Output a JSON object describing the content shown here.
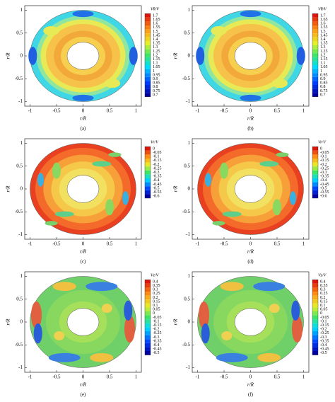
{
  "chart_data": [
    {
      "type": "contour",
      "caption": "(a)",
      "xlabel": "r/R",
      "ylabel": "r/R",
      "xlim": [
        -1.1,
        1.1
      ],
      "ylim": [
        -1.1,
        1.1
      ],
      "xticks": [
        -1,
        -0.5,
        0,
        0.5,
        1
      ],
      "yticks": [
        -1,
        -0.5,
        0,
        0.5,
        1
      ],
      "colorbar_title": "Vθ/V",
      "levels": [
        1.7,
        1.65,
        1.6,
        1.55,
        1.5,
        1.45,
        1.4,
        1.35,
        1.3,
        1.25,
        1.2,
        1.15,
        1.1,
        1.05,
        1,
        0.95,
        0.9,
        0.85,
        0.8,
        0.75,
        0.7
      ]
    },
    {
      "type": "contour",
      "caption": "(b)",
      "xlabel": "r/R",
      "ylabel": "r/R",
      "xlim": [
        -1.1,
        1.1
      ],
      "ylim": [
        -1.1,
        1.1
      ],
      "xticks": [
        -1,
        -0.5,
        0,
        0.5,
        1
      ],
      "yticks": [
        -1,
        -0.5,
        0,
        0.5,
        1
      ],
      "colorbar_title": "Vθ/V",
      "levels": [
        1.7,
        1.65,
        1.6,
        1.55,
        1.5,
        1.45,
        1.4,
        1.35,
        1.3,
        1.25,
        1.2,
        1.15,
        1.1,
        1.05,
        1,
        0.95,
        0.9,
        0.85,
        0.8,
        0.75,
        0.7
      ]
    },
    {
      "type": "contour",
      "caption": "(c)",
      "xlabel": "r/R",
      "ylabel": "r/R",
      "xlim": [
        -1.1,
        1.1
      ],
      "ylim": [
        -1.1,
        1.1
      ],
      "xticks": [
        -1,
        -0.5,
        0,
        0.5,
        1
      ],
      "yticks": [
        -1,
        -0.5,
        0,
        0.5,
        1
      ],
      "colorbar_title": "Vr/V",
      "levels": [
        0,
        -0.05,
        -0.1,
        -0.15,
        -0.2,
        -0.25,
        -0.3,
        -0.35,
        -0.4,
        -0.45,
        -0.5,
        -0.55,
        -0.6
      ]
    },
    {
      "type": "contour",
      "caption": "(d)",
      "xlabel": "r/R",
      "ylabel": "r/R",
      "xlim": [
        -1.1,
        1.1
      ],
      "ylim": [
        -1.1,
        1.1
      ],
      "xticks": [
        -1,
        -0.5,
        0,
        0.5,
        1
      ],
      "yticks": [
        -1,
        -0.5,
        0,
        0.5,
        1
      ],
      "colorbar_title": "Vr/V",
      "levels": [
        0,
        -0.05,
        -0.1,
        -0.15,
        -0.2,
        -0.25,
        -0.3,
        -0.35,
        -0.4,
        -0.45,
        -0.5,
        -0.55,
        -0.6
      ]
    },
    {
      "type": "contour",
      "caption": "(e)",
      "xlabel": "r/R",
      "ylabel": "r/R",
      "xlim": [
        -1.1,
        1.1
      ],
      "ylim": [
        -1.1,
        1.1
      ],
      "xticks": [
        -1,
        -0.5,
        0,
        0.5,
        1
      ],
      "yticks": [
        -1,
        -0.5,
        0,
        0.5,
        1
      ],
      "colorbar_title": "Vz/V",
      "levels": [
        0.4,
        0.35,
        0.3,
        0.25,
        0.2,
        0.15,
        0.1,
        0.05,
        0,
        -0.05,
        -0.1,
        -0.15,
        -0.2,
        -0.25,
        -0.3,
        -0.35,
        -0.4,
        -0.45,
        -0.5
      ]
    },
    {
      "type": "contour",
      "caption": "(f)",
      "xlabel": "r/R",
      "ylabel": "r/R",
      "xlim": [
        -1.1,
        1.1
      ],
      "ylim": [
        -1.1,
        1.1
      ],
      "xticks": [
        -1,
        -0.5,
        0,
        0.5,
        1
      ],
      "yticks": [
        -1,
        -0.5,
        0,
        0.5,
        1
      ],
      "colorbar_title": "Vz/V",
      "levels": [
        0.4,
        0.35,
        0.3,
        0.25,
        0.2,
        0.15,
        0.1,
        0.05,
        0,
        -0.05,
        -0.1,
        -0.15,
        -0.2,
        -0.25,
        -0.3,
        -0.35,
        -0.4,
        -0.45,
        -0.5
      ]
    }
  ]
}
